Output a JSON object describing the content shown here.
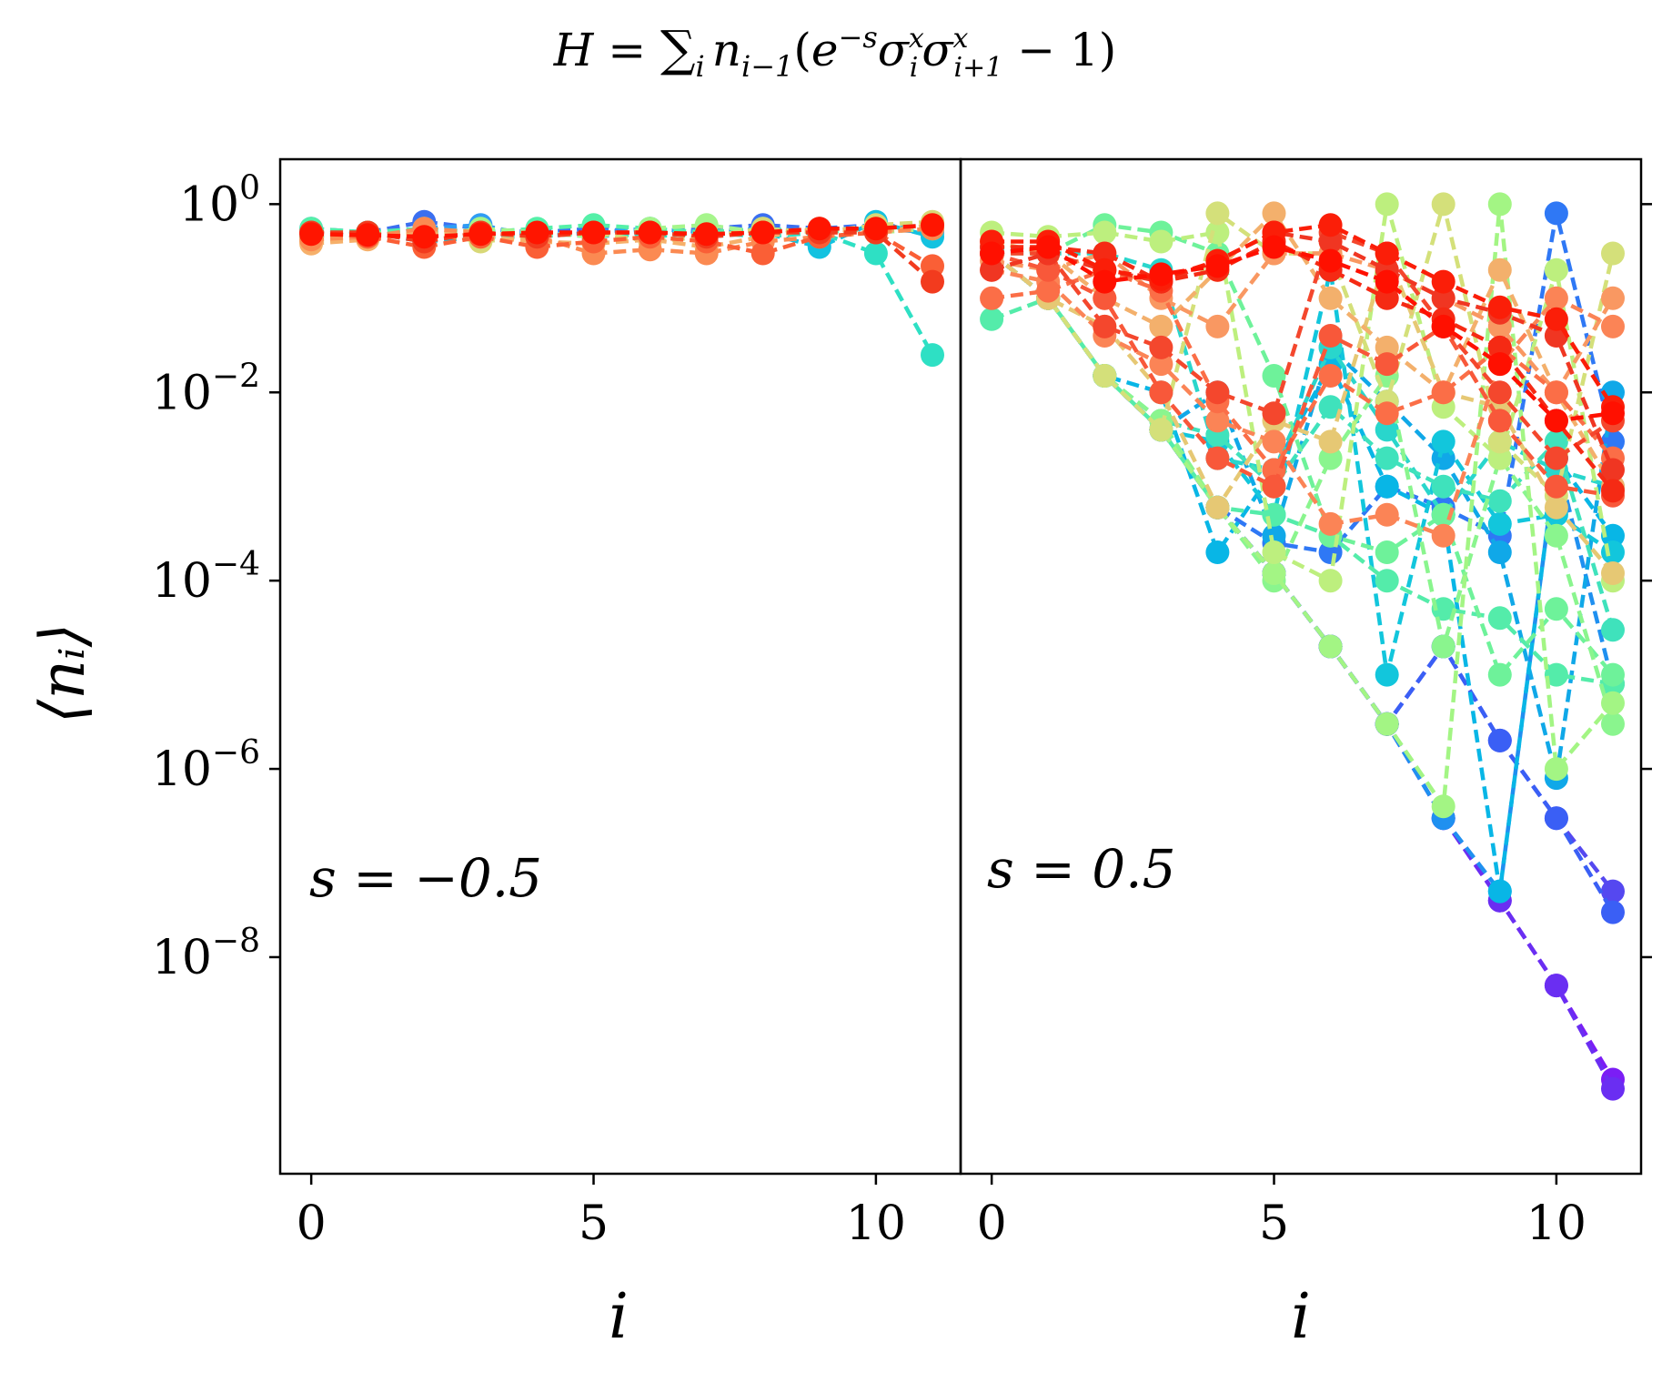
{
  "figure": {
    "title_parts": {
      "H": "H",
      "eq": " = ",
      "sum": "∑",
      "sum_sub": "i",
      "n": "n",
      "n_sub": "i−1",
      "lparen": "(",
      "e": "e",
      "e_sup": "−s",
      "sigma": "σ",
      "s1_sup": "x",
      "s1_sub": "i",
      "s2_sup": "x",
      "s2_sub": "i+1",
      "tail": " − 1)"
    },
    "ylabel": "⟨nᵢ⟩",
    "xlabel": "i"
  },
  "chart_data": [
    {
      "type": "line",
      "panel": "left",
      "annotation": "s = −0.5",
      "xlabel": "i",
      "ylabel": "⟨nᵢ⟩",
      "yscale": "log",
      "xlim": [
        -0.55,
        11.5
      ],
      "ylim": [
        5e-11,
        3
      ],
      "xticks": [
        0,
        5,
        10
      ],
      "xtick_labels": [
        "0",
        "5",
        "10"
      ],
      "yticks": [
        1,
        0.01,
        0.0001,
        1e-06,
        1e-08
      ],
      "ytick_labels": [
        {
          "base": "10",
          "exp": "0"
        },
        {
          "base": "10",
          "exp": "−2"
        },
        {
          "base": "10",
          "exp": "−4"
        },
        {
          "base": "10",
          "exp": "−6"
        },
        {
          "base": "10",
          "exp": "−8"
        }
      ],
      "x": [
        0,
        1,
        2,
        3,
        4,
        5,
        6,
        7,
        8,
        9,
        10,
        11
      ],
      "series": [
        {
          "color": "#3b6ff0",
          "values": [
            0.55,
            0.5,
            0.65,
            0.55,
            0.5,
            0.55,
            0.5,
            0.55,
            0.6,
            0.55,
            0.6,
            0.55
          ]
        },
        {
          "color": "#2f9df4",
          "values": [
            0.5,
            0.45,
            0.55,
            0.6,
            0.45,
            0.5,
            0.55,
            0.5,
            0.55,
            0.5,
            0.55,
            0.5
          ]
        },
        {
          "color": "#13c2e0",
          "values": [
            0.45,
            0.5,
            0.4,
            0.45,
            0.5,
            0.45,
            0.5,
            0.45,
            0.5,
            0.35,
            0.65,
            0.45
          ]
        },
        {
          "color": "#2ee0c4",
          "values": [
            0.5,
            0.45,
            0.5,
            0.45,
            0.45,
            0.5,
            0.45,
            0.5,
            0.45,
            0.5,
            0.3,
            0.025
          ]
        },
        {
          "color": "#55f0a8",
          "values": [
            0.55,
            0.5,
            0.55,
            0.5,
            0.55,
            0.6,
            0.55,
            0.5,
            0.55,
            0.5,
            0.55,
            0.6
          ]
        },
        {
          "color": "#a6f58c",
          "values": [
            0.45,
            0.5,
            0.45,
            0.55,
            0.5,
            0.45,
            0.55,
            0.6,
            0.5,
            0.55,
            0.5,
            0.55
          ]
        },
        {
          "color": "#d8d877",
          "values": [
            0.4,
            0.45,
            0.5,
            0.4,
            0.45,
            0.5,
            0.4,
            0.45,
            0.55,
            0.5,
            0.6,
            0.65
          ]
        },
        {
          "color": "#f6b06a",
          "values": [
            0.38,
            0.42,
            0.5,
            0.45,
            0.4,
            0.38,
            0.42,
            0.35,
            0.45,
            0.55,
            0.5,
            0.6
          ]
        },
        {
          "color": "#fb8a52",
          "values": [
            0.42,
            0.45,
            0.55,
            0.5,
            0.45,
            0.3,
            0.33,
            0.3,
            0.4,
            0.45,
            0.5,
            0.55
          ]
        },
        {
          "color": "#fa5f36",
          "values": [
            0.5,
            0.45,
            0.35,
            0.45,
            0.35,
            0.4,
            0.45,
            0.4,
            0.3,
            0.45,
            0.5,
            0.22
          ]
        },
        {
          "color": "#f23b1e",
          "values": [
            0.5,
            0.5,
            0.4,
            0.5,
            0.45,
            0.5,
            0.5,
            0.45,
            0.5,
            0.5,
            0.5,
            0.15
          ]
        },
        {
          "color": "#ff1500",
          "values": [
            0.48,
            0.47,
            0.45,
            0.48,
            0.5,
            0.5,
            0.5,
            0.48,
            0.5,
            0.55,
            0.55,
            0.6
          ]
        }
      ]
    },
    {
      "type": "line",
      "panel": "right",
      "annotation": "s = 0.5",
      "xlabel": "i",
      "yscale": "log",
      "xlim": [
        -0.55,
        11.5
      ],
      "ylim": [
        5e-11,
        3
      ],
      "xticks": [
        0,
        5,
        10
      ],
      "xtick_labels": [
        "0",
        "5",
        "10"
      ],
      "x": [
        0,
        1,
        2,
        3,
        4,
        5,
        6,
        7,
        8,
        9,
        10,
        11
      ],
      "series": [
        {
          "color": "#7b1df5",
          "values": [
            0.3,
            0.1,
            0.015,
            0.004,
            0.0006,
            0.00012,
            2e-05,
            3e-06,
            3e-07,
            4e-08,
            5e-09,
            5e-10
          ]
        },
        {
          "color": "#6a2ef2",
          "values": [
            0.3,
            0.1,
            0.015,
            0.004,
            0.0006,
            0.00012,
            2e-05,
            3e-06,
            3e-07,
            4e-08,
            5e-09,
            4e-10
          ]
        },
        {
          "color": "#5548f0",
          "values": [
            0.3,
            0.1,
            0.015,
            0.004,
            0.0006,
            0.00012,
            2e-05,
            3e-06,
            2e-05,
            2e-06,
            3e-07,
            5e-08
          ]
        },
        {
          "color": "#3a5ff5",
          "values": [
            0.3,
            0.1,
            0.015,
            0.004,
            0.0006,
            0.00012,
            2e-05,
            3e-06,
            2e-05,
            2e-06,
            3e-07,
            3e-08
          ]
        },
        {
          "color": "#2f78f5",
          "values": [
            0.3,
            0.1,
            0.015,
            0.004,
            0.0006,
            0.00025,
            0.0002,
            0.001,
            0.0006,
            0.0003,
            0.8,
            0.003
          ]
        },
        {
          "color": "#1f90f0",
          "values": [
            0.3,
            0.1,
            0.015,
            0.004,
            0.0006,
            0.00012,
            2e-05,
            3e-06,
            3e-07,
            5e-08,
            0.002,
            8e-06
          ]
        },
        {
          "color": "#10a8e8",
          "values": [
            0.3,
            0.1,
            0.015,
            0.004,
            0.01,
            0.0003,
            0.03,
            0.008,
            0.002,
            0.0002,
            8e-07,
            0.01
          ]
        },
        {
          "color": "#08b6e6",
          "values": [
            0.3,
            0.1,
            0.015,
            0.01,
            0.0002,
            0.0015,
            0.02,
            0.001,
            0.0005,
            5e-08,
            0.002,
            0.0003
          ]
        },
        {
          "color": "#12c6dc",
          "values": [
            0.3,
            0.1,
            0.015,
            0.004,
            0.003,
            0.0005,
            0.2,
            1e-05,
            0.003,
            0.0004,
            0.0005,
            0.0002
          ]
        },
        {
          "color": "#29d6cc",
          "values": [
            0.35,
            0.3,
            0.3,
            0.2,
            0.002,
            0.0015,
            0.03,
            0.004,
            0.0005,
            0.003,
            0.0015,
            0.001
          ]
        },
        {
          "color": "#3fe2bc",
          "values": [
            0.3,
            0.1,
            0.015,
            0.005,
            0.0035,
            0.001,
            0.007,
            0.002,
            0.001,
            0.0007,
            0.003,
            3e-05
          ]
        },
        {
          "color": "#54ecaa",
          "values": [
            0.06,
            0.1,
            0.015,
            0.004,
            0.0006,
            0.0005,
            0.0003,
            0.0001,
            5e-05,
            4e-05,
            1e-05,
            8e-06
          ]
        },
        {
          "color": "#6ef29a",
          "values": [
            0.3,
            0.3,
            0.6,
            0.5,
            0.3,
            0.015,
            0.0003,
            0.0002,
            0.0005,
            1e-05,
            5e-05,
            1e-05
          ]
        },
        {
          "color": "#8af58e",
          "values": [
            0.3,
            0.1,
            0.015,
            0.005,
            0.0006,
            0.0001,
            0.002,
            0.015,
            2e-05,
            0.002,
            0.0003,
            3e-06
          ]
        },
        {
          "color": "#a3f584",
          "values": [
            0.3,
            0.1,
            0.015,
            0.004,
            0.0006,
            0.00012,
            2e-05,
            3e-06,
            4e-07,
            1.0,
            1e-06,
            5e-06
          ]
        },
        {
          "color": "#bdef7e",
          "values": [
            0.5,
            0.45,
            0.5,
            0.4,
            0.5,
            0.0002,
            0.0001,
            1.0,
            0.007,
            0.002,
            0.2,
            0.0001
          ]
        },
        {
          "color": "#d4e07a",
          "values": [
            0.3,
            0.1,
            0.015,
            0.004,
            0.8,
            0.3,
            0.3,
            0.008,
            1.0,
            0.003,
            0.0008,
            0.3
          ]
        },
        {
          "color": "#e6c874",
          "values": [
            0.3,
            0.1,
            0.05,
            0.01,
            0.0006,
            0.005,
            0.003,
            0.3,
            0.01,
            0.007,
            0.0006,
            0.00012
          ]
        },
        {
          "color": "#f3b06c",
          "values": [
            0.4,
            0.3,
            0.1,
            0.05,
            0.2,
            0.8,
            0.1,
            0.03,
            0.01,
            0.2,
            0.01,
            0.001
          ]
        },
        {
          "color": "#f99862",
          "values": [
            0.25,
            0.2,
            0.3,
            0.1,
            0.05,
            0.3,
            0.3,
            0.2,
            0.1,
            0.05,
            0.01,
            0.1
          ]
        },
        {
          "color": "#fb8456",
          "values": [
            0.2,
            0.15,
            0.04,
            0.02,
            0.005,
            0.003,
            0.0004,
            0.0005,
            0.0003,
            0.02,
            0.1,
            0.05
          ]
        },
        {
          "color": "#fb6e47",
          "values": [
            0.1,
            0.12,
            0.2,
            0.12,
            0.008,
            0.0015,
            0.015,
            0.006,
            0.01,
            0.03,
            0.01,
            0.002
          ]
        },
        {
          "color": "#f8583a",
          "values": [
            0.3,
            0.2,
            0.1,
            0.01,
            0.002,
            0.001,
            0.04,
            0.02,
            0.05,
            0.005,
            0.001,
            0.0008
          ]
        },
        {
          "color": "#f4472d",
          "values": [
            0.3,
            0.3,
            0.05,
            0.03,
            0.01,
            0.006,
            0.5,
            0.3,
            0.05,
            0.01,
            0.002,
            0.005
          ]
        },
        {
          "color": "#f03622",
          "values": [
            0.2,
            0.3,
            0.2,
            0.15,
            0.25,
            0.5,
            0.4,
            0.2,
            0.1,
            0.07,
            0.04,
            0.0015
          ]
        },
        {
          "color": "#f52a14",
          "values": [
            0.35,
            0.35,
            0.3,
            0.15,
            0.2,
            0.4,
            0.2,
            0.1,
            0.06,
            0.03,
            0.005,
            0.0009
          ]
        },
        {
          "color": "#fb1e08",
          "values": [
            0.4,
            0.4,
            0.2,
            0.16,
            0.25,
            0.5,
            0.6,
            0.3,
            0.15,
            0.08,
            0.06,
            0.007
          ]
        },
        {
          "color": "#ff1000",
          "values": [
            0.3,
            0.35,
            0.15,
            0.18,
            0.22,
            0.35,
            0.25,
            0.15,
            0.05,
            0.02,
            0.005,
            0.006
          ]
        }
      ]
    }
  ]
}
